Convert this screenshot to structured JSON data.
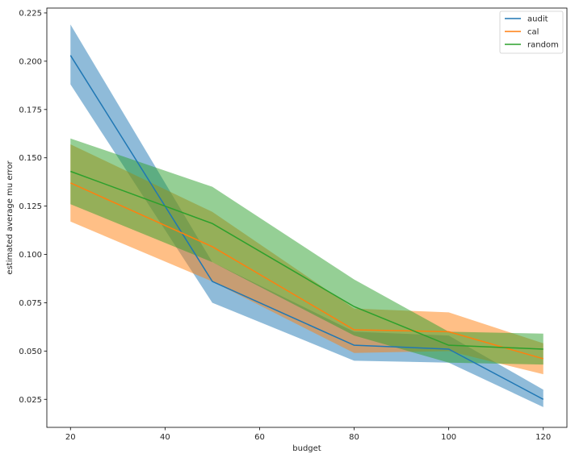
{
  "chart_data": {
    "type": "line",
    "xlabel": "budget",
    "ylabel": "estimated average mu error",
    "xlim": [
      15,
      125
    ],
    "ylim": [
      0.0105,
      0.2275
    ],
    "xticks": [
      20,
      40,
      60,
      80,
      100,
      120
    ],
    "xtick_labels": [
      "20",
      "40",
      "60",
      "80",
      "100",
      "120"
    ],
    "yticks": [
      0.025,
      0.05,
      0.075,
      0.1,
      0.125,
      0.15,
      0.175,
      0.2,
      0.225
    ],
    "ytick_labels": [
      "0.025",
      "0.050",
      "0.075",
      "0.100",
      "0.125",
      "0.150",
      "0.175",
      "0.200",
      "0.225"
    ],
    "grid": false,
    "legend_position": "top-right",
    "x": [
      20,
      50,
      80,
      100,
      120
    ],
    "series": [
      {
        "name": "audit",
        "color": "#1f77b4",
        "values": [
          0.203,
          0.086,
          0.053,
          0.051,
          0.025
        ],
        "lower": [
          0.188,
          0.075,
          0.045,
          0.044,
          0.021
        ],
        "upper": [
          0.219,
          0.096,
          0.06,
          0.058,
          0.03
        ]
      },
      {
        "name": "cal",
        "color": "#ff7f0e",
        "values": [
          0.137,
          0.104,
          0.061,
          0.06,
          0.046
        ],
        "lower": [
          0.117,
          0.086,
          0.049,
          0.05,
          0.038
        ],
        "upper": [
          0.157,
          0.122,
          0.072,
          0.07,
          0.054
        ]
      },
      {
        "name": "random",
        "color": "#2ca02c",
        "values": [
          0.143,
          0.116,
          0.073,
          0.053,
          0.051
        ],
        "lower": [
          0.126,
          0.096,
          0.058,
          0.044,
          0.043
        ],
        "upper": [
          0.16,
          0.135,
          0.087,
          0.06,
          0.059
        ]
      }
    ]
  }
}
